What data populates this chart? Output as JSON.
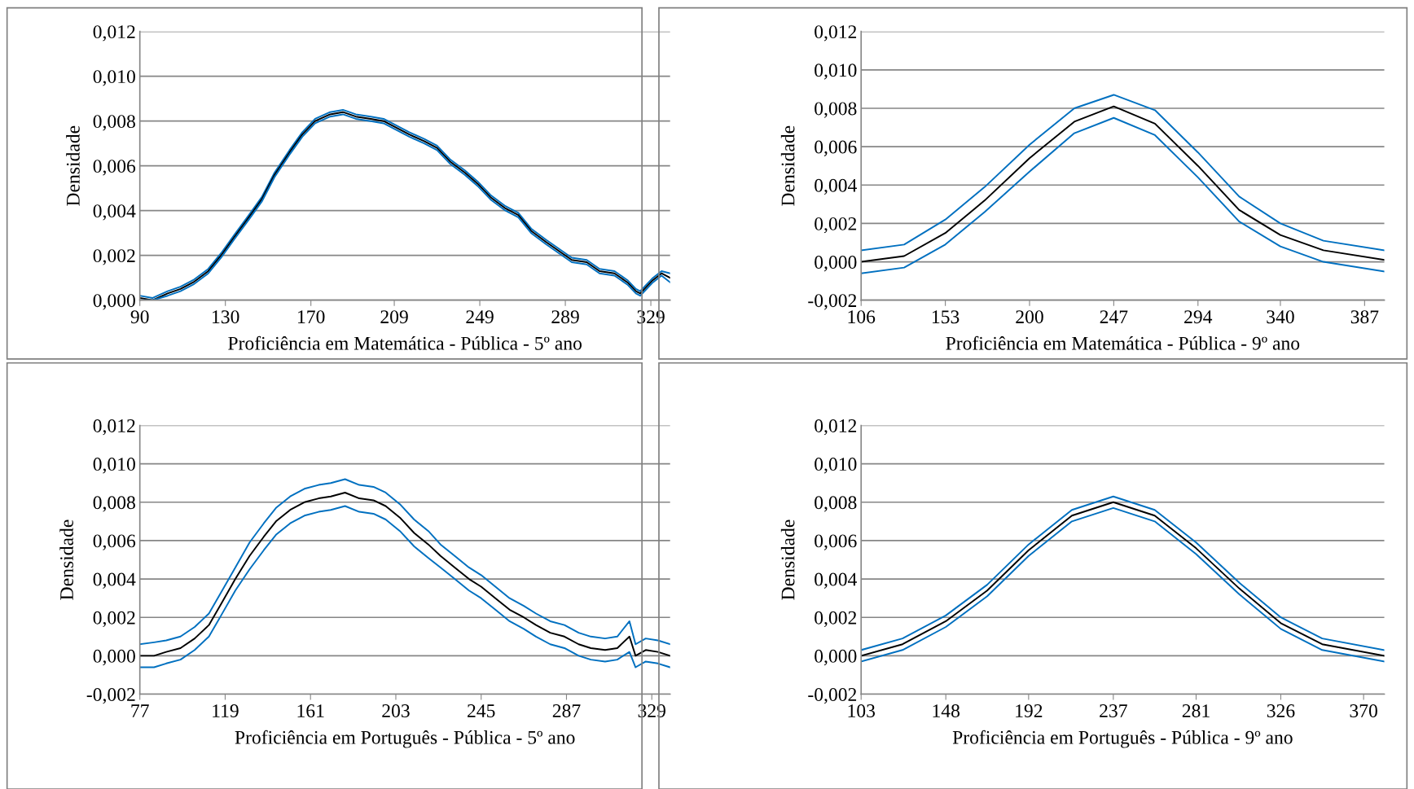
{
  "chart_data": [
    {
      "type": "line",
      "xlabel": "Proficiência em Matemática - Pública - 5º ano",
      "ylabel": "Densidade",
      "grid": "y",
      "xlim": [
        90,
        338
      ],
      "xticks": [
        90,
        130,
        170,
        209,
        249,
        289,
        329
      ],
      "ylim": [
        0,
        0.012
      ],
      "yticks": [
        {
          "value": 0,
          "label": "0,000"
        },
        {
          "value": 0.002,
          "label": "0,002"
        },
        {
          "value": 0.004,
          "label": "0,004"
        },
        {
          "value": 0.006,
          "label": "0,006"
        },
        {
          "value": 0.008,
          "label": "0,008"
        },
        {
          "value": 0.01,
          "label": "0,010"
        },
        {
          "value": 0.012,
          "label": "0,012"
        }
      ],
      "series": [
        {
          "color": "#0070c0",
          "x": [
            90,
            96,
            103,
            109,
            115,
            122,
            128,
            134,
            141,
            147,
            153,
            160,
            166,
            172,
            179,
            185,
            191,
            198,
            204,
            210,
            216,
            223,
            229,
            235,
            242,
            248,
            254,
            261,
            267,
            273,
            280,
            286,
            292,
            299,
            305,
            312,
            318,
            322,
            324,
            330,
            334,
            338
          ],
          "values": [
            0.0002,
            0.0001,
            0.0004,
            0.0006,
            0.0009,
            0.0014,
            0.0021,
            0.0029,
            0.0038,
            0.0046,
            0.0057,
            0.0067,
            0.0075,
            0.0081,
            0.0084,
            0.0085,
            0.0083,
            0.0082,
            0.0081,
            0.0078,
            0.0075,
            0.0072,
            0.0069,
            0.0063,
            0.0058,
            0.0053,
            0.0047,
            0.0042,
            0.0039,
            0.0032,
            0.0027,
            0.0023,
            0.0019,
            0.0018,
            0.0014,
            0.0013,
            0.0009,
            0.0005,
            0.0004,
            0.001,
            0.0013,
            0.0012
          ]
        },
        {
          "color": "#000000",
          "x": [
            90,
            96,
            103,
            109,
            115,
            122,
            128,
            134,
            141,
            147,
            153,
            160,
            166,
            172,
            179,
            185,
            191,
            198,
            204,
            210,
            216,
            223,
            229,
            235,
            242,
            248,
            254,
            261,
            267,
            273,
            280,
            286,
            292,
            299,
            305,
            312,
            318,
            322,
            324,
            330,
            334,
            338
          ],
          "values": [
            0.0001,
            0.0,
            0.0003,
            0.0005,
            0.0008,
            0.0013,
            0.002,
            0.0028,
            0.0037,
            0.0045,
            0.0056,
            0.0066,
            0.0074,
            0.008,
            0.0083,
            0.0084,
            0.0082,
            0.0081,
            0.008,
            0.0077,
            0.0074,
            0.0071,
            0.0068,
            0.0062,
            0.0057,
            0.0052,
            0.0046,
            0.0041,
            0.0038,
            0.0031,
            0.0026,
            0.0022,
            0.0018,
            0.0017,
            0.0013,
            0.0012,
            0.0008,
            0.0004,
            0.0003,
            0.0009,
            0.0012,
            0.001
          ]
        },
        {
          "color": "#0070c0",
          "x": [
            90,
            96,
            103,
            109,
            115,
            122,
            128,
            134,
            141,
            147,
            153,
            160,
            166,
            172,
            179,
            185,
            191,
            198,
            204,
            210,
            216,
            223,
            229,
            235,
            242,
            248,
            254,
            261,
            267,
            273,
            280,
            286,
            292,
            299,
            305,
            312,
            318,
            322,
            324,
            330,
            334,
            338
          ],
          "values": [
            0.0,
            0.0,
            0.0002,
            0.0004,
            0.0007,
            0.0012,
            0.0019,
            0.0027,
            0.0036,
            0.0044,
            0.0055,
            0.0065,
            0.0073,
            0.0079,
            0.0082,
            0.0083,
            0.0081,
            0.008,
            0.0079,
            0.0076,
            0.0073,
            0.007,
            0.0067,
            0.0061,
            0.0056,
            0.0051,
            0.0045,
            0.004,
            0.0037,
            0.003,
            0.0025,
            0.0021,
            0.0017,
            0.0016,
            0.0012,
            0.0011,
            0.0007,
            0.0003,
            0.0002,
            0.0008,
            0.0011,
            0.0008
          ]
        }
      ]
    },
    {
      "type": "line",
      "xlabel": "Proficiência em Matemática - Pública - 9º ano",
      "ylabel": "Densidade",
      "grid": "y",
      "xlim": [
        106,
        398
      ],
      "xticks": [
        106,
        153,
        200,
        247,
        294,
        340,
        387
      ],
      "ylim": [
        -0.002,
        0.012
      ],
      "yticks": [
        {
          "value": -0.002,
          "label": "-0,002"
        },
        {
          "value": 0,
          "label": "0,000"
        },
        {
          "value": 0.002,
          "label": "0,002"
        },
        {
          "value": 0.004,
          "label": "0,004"
        },
        {
          "value": 0.006,
          "label": "0,006"
        },
        {
          "value": 0.008,
          "label": "0,008"
        },
        {
          "value": 0.01,
          "label": "0,010"
        },
        {
          "value": 0.012,
          "label": "0,012"
        }
      ],
      "series": [
        {
          "color": "#0070c0",
          "x": [
            106,
            130,
            153,
            175,
            200,
            225,
            247,
            270,
            294,
            317,
            340,
            364,
            398
          ],
          "values": [
            0.0006,
            0.0009,
            0.0022,
            0.0039,
            0.0061,
            0.008,
            0.0087,
            0.0079,
            0.0057,
            0.0034,
            0.002,
            0.0011,
            0.0006
          ]
        },
        {
          "color": "#000000",
          "x": [
            106,
            130,
            153,
            175,
            200,
            225,
            247,
            270,
            294,
            317,
            340,
            364,
            398
          ],
          "values": [
            0.0,
            0.0003,
            0.0015,
            0.0032,
            0.0054,
            0.0073,
            0.0081,
            0.0072,
            0.005,
            0.0027,
            0.0014,
            0.0006,
            0.0001
          ]
        },
        {
          "color": "#0070c0",
          "x": [
            106,
            130,
            153,
            175,
            200,
            225,
            247,
            270,
            294,
            317,
            340,
            364,
            398
          ],
          "values": [
            -0.0006,
            -0.0003,
            0.0009,
            0.0026,
            0.0047,
            0.0067,
            0.0075,
            0.0066,
            0.0044,
            0.0021,
            0.0008,
            0.0,
            -0.0005
          ]
        }
      ]
    },
    {
      "type": "line",
      "xlabel": "Proficiência em Português - Pública - 5º ano",
      "ylabel": "Densidade",
      "grid": "y",
      "xlim": [
        77,
        338
      ],
      "xticks": [
        77,
        119,
        161,
        203,
        245,
        287,
        329
      ],
      "ylim": [
        -0.002,
        0.012
      ],
      "yticks": [
        {
          "value": -0.002,
          "label": "-0,002"
        },
        {
          "value": 0,
          "label": "0,000"
        },
        {
          "value": 0.002,
          "label": "0,002"
        },
        {
          "value": 0.004,
          "label": "0,004"
        },
        {
          "value": 0.006,
          "label": "0,006"
        },
        {
          "value": 0.008,
          "label": "0,008"
        },
        {
          "value": 0.01,
          "label": "0,010"
        },
        {
          "value": 0.012,
          "label": "0,012"
        }
      ],
      "series": [
        {
          "color": "#0070c0",
          "x": [
            77,
            84,
            90,
            97,
            104,
            111,
            117,
            124,
            131,
            138,
            144,
            151,
            158,
            165,
            171,
            178,
            185,
            192,
            198,
            205,
            212,
            219,
            225,
            232,
            239,
            245,
            252,
            259,
            266,
            272,
            279,
            286,
            293,
            299,
            306,
            312,
            318,
            321,
            326,
            332,
            338
          ],
          "values": [
            0.0006,
            0.0007,
            0.0008,
            0.001,
            0.0015,
            0.0022,
            0.0033,
            0.0046,
            0.0059,
            0.0069,
            0.0077,
            0.0083,
            0.0087,
            0.0089,
            0.009,
            0.0092,
            0.0089,
            0.0088,
            0.0085,
            0.0079,
            0.0071,
            0.0065,
            0.0058,
            0.0052,
            0.0046,
            0.0042,
            0.0036,
            0.003,
            0.0026,
            0.0022,
            0.0018,
            0.0016,
            0.0012,
            0.001,
            0.0009,
            0.001,
            0.0018,
            0.0006,
            0.0009,
            0.0008,
            0.0006
          ]
        },
        {
          "color": "#000000",
          "x": [
            77,
            84,
            90,
            97,
            104,
            111,
            117,
            124,
            131,
            138,
            144,
            151,
            158,
            165,
            171,
            178,
            185,
            192,
            198,
            205,
            212,
            219,
            225,
            232,
            239,
            245,
            252,
            259,
            266,
            272,
            279,
            286,
            293,
            299,
            306,
            312,
            318,
            321,
            326,
            332,
            338
          ],
          "values": [
            0.0,
            0.0,
            0.0002,
            0.0004,
            0.0009,
            0.0016,
            0.0027,
            0.004,
            0.0052,
            0.0062,
            0.007,
            0.0076,
            0.008,
            0.0082,
            0.0083,
            0.0085,
            0.0082,
            0.0081,
            0.0078,
            0.0072,
            0.0064,
            0.0058,
            0.0052,
            0.0046,
            0.004,
            0.0036,
            0.003,
            0.0024,
            0.002,
            0.0016,
            0.0012,
            0.001,
            0.0006,
            0.0004,
            0.0003,
            0.0004,
            0.001,
            0.0,
            0.0003,
            0.0002,
            0.0
          ]
        },
        {
          "color": "#0070c0",
          "x": [
            77,
            84,
            90,
            97,
            104,
            111,
            117,
            124,
            131,
            138,
            144,
            151,
            158,
            165,
            171,
            178,
            185,
            192,
            198,
            205,
            212,
            219,
            225,
            232,
            239,
            245,
            252,
            259,
            266,
            272,
            279,
            286,
            293,
            299,
            306,
            312,
            318,
            321,
            326,
            332,
            338
          ],
          "values": [
            -0.0006,
            -0.0006,
            -0.0004,
            -0.0002,
            0.0003,
            0.001,
            0.0021,
            0.0034,
            0.0045,
            0.0055,
            0.0063,
            0.0069,
            0.0073,
            0.0075,
            0.0076,
            0.0078,
            0.0075,
            0.0074,
            0.0071,
            0.0065,
            0.0057,
            0.0051,
            0.0046,
            0.004,
            0.0034,
            0.003,
            0.0024,
            0.0018,
            0.0014,
            0.001,
            0.0006,
            0.0004,
            0.0,
            -0.0002,
            -0.0003,
            -0.0002,
            0.0002,
            -0.0006,
            -0.0003,
            -0.0004,
            -0.0006
          ]
        }
      ]
    },
    {
      "type": "line",
      "xlabel": "Proficiência em Português - Pública - 9º ano",
      "ylabel": "Densidade",
      "grid": "y",
      "xlim": [
        103,
        381
      ],
      "xticks": [
        103,
        148,
        192,
        237,
        281,
        326,
        370
      ],
      "ylim": [
        -0.002,
        0.012
      ],
      "yticks": [
        {
          "value": -0.002,
          "label": "-0,002"
        },
        {
          "value": 0,
          "label": "0,000"
        },
        {
          "value": 0.002,
          "label": "0,002"
        },
        {
          "value": 0.004,
          "label": "0,004"
        },
        {
          "value": 0.006,
          "label": "0,006"
        },
        {
          "value": 0.008,
          "label": "0,008"
        },
        {
          "value": 0.01,
          "label": "0,010"
        },
        {
          "value": 0.012,
          "label": "0,012"
        }
      ],
      "series": [
        {
          "color": "#0070c0",
          "x": [
            103,
            125,
            148,
            170,
            192,
            215,
            237,
            259,
            281,
            304,
            326,
            348,
            381
          ],
          "values": [
            0.0003,
            0.0009,
            0.0021,
            0.0037,
            0.0058,
            0.0076,
            0.0083,
            0.0076,
            0.0059,
            0.0038,
            0.002,
            0.0009,
            0.0003
          ]
        },
        {
          "color": "#000000",
          "x": [
            103,
            125,
            148,
            170,
            192,
            215,
            237,
            259,
            281,
            304,
            326,
            348,
            381
          ],
          "values": [
            0.0,
            0.0006,
            0.0018,
            0.0034,
            0.0055,
            0.0073,
            0.008,
            0.0073,
            0.0056,
            0.0035,
            0.0017,
            0.0006,
            0.0
          ]
        },
        {
          "color": "#0070c0",
          "x": [
            103,
            125,
            148,
            170,
            192,
            215,
            237,
            259,
            281,
            304,
            326,
            348,
            381
          ],
          "values": [
            -0.0003,
            0.0003,
            0.0015,
            0.0031,
            0.0052,
            0.007,
            0.0077,
            0.007,
            0.0053,
            0.0032,
            0.0014,
            0.0003,
            -0.0003
          ]
        }
      ]
    }
  ]
}
